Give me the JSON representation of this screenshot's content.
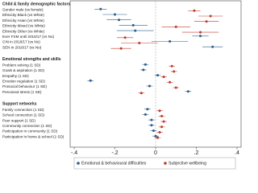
{
  "chart_data": {
    "type": "forest",
    "groups": [
      {
        "title": "Child & family demographic factors",
        "categories": [
          "Gender male (vs female)",
          "Ethnicity Black (vs White)",
          "Ethnicity Asian (vs White)",
          "Ethnicity Mixed (vs White)",
          "Ethnicity Other (vs White)",
          "Ever FSM until 2016/17 (vs No)",
          "CIN in 2016/17 (vs No)",
          "SEN in 2016/17 (vs No)"
        ]
      },
      {
        "title": "Emotional strengths and skills",
        "categories": [
          "Problem solving (1 SD)",
          "Goals & aspiration (1 SD)",
          "Empathy (1 SD)",
          "Emotion regulation (1 SD)",
          "Prosocial behaviour (1 SD)",
          "Perceived stress (1 SD)"
        ]
      },
      {
        "title": "Support networks",
        "categories": [
          "Family connection (1 SD)",
          "School connection (1 SD)",
          "Peer support (1 SD)",
          "Community connection (1 SD)",
          "Participation in community (1 SD)",
          "Participation in home & school (1 SD)"
        ]
      }
    ],
    "series": [
      {
        "name": "Emotional & behavioural difficulties",
        "color": "#2b5d8c",
        "values": [
          [
            -0.27,
            -0.2,
            -0.18,
            -0.11,
            -0.1,
            0.22,
            0.07,
            0.28
          ],
          [
            -0.05,
            -0.06,
            0.01,
            -0.32,
            -0.03,
            0.16
          ],
          [
            -0.04,
            -0.05,
            -0.02,
            -0.02,
            -0.01,
            0.0
          ]
        ],
        "errors": [
          [
            0.03,
            0.06,
            0.06,
            0.07,
            0.09,
            0.04,
            0.09,
            0.05
          ],
          [
            0.015,
            0.015,
            0.015,
            0.015,
            0.015,
            0.015
          ],
          [
            0.015,
            0.015,
            0.015,
            0.015,
            0.015,
            0.015
          ]
        ]
      },
      {
        "name": "Subjective wellbeing",
        "color": "#c0392b",
        "values": [
          [
            0.19,
            0.27,
            0.25,
            0.1,
            0.22,
            -0.15,
            -0.08,
            -0.17
          ],
          [
            0.08,
            0.09,
            0.04,
            0.07,
            0.1,
            -0.07
          ],
          [
            0.02,
            0.03,
            0.04,
            0.03,
            0.02,
            0.01
          ]
        ],
        "errors": [
          [
            0.03,
            0.06,
            0.06,
            0.07,
            0.09,
            0.04,
            0.09,
            0.05
          ],
          [
            0.015,
            0.015,
            0.015,
            0.015,
            0.015,
            0.015
          ],
          [
            0.015,
            0.015,
            0.015,
            0.015,
            0.015,
            0.015
          ]
        ]
      }
    ],
    "xlim": [
      -0.42,
      0.42
    ],
    "xticks": [
      {
        "value": -0.4,
        "label": "-.4"
      },
      {
        "value": -0.2,
        "label": "-.2"
      },
      0,
      {
        "value": 0.2,
        "label": ".2"
      },
      {
        "value": 0.4,
        "label": ".4"
      }
    ],
    "refline": 0
  }
}
